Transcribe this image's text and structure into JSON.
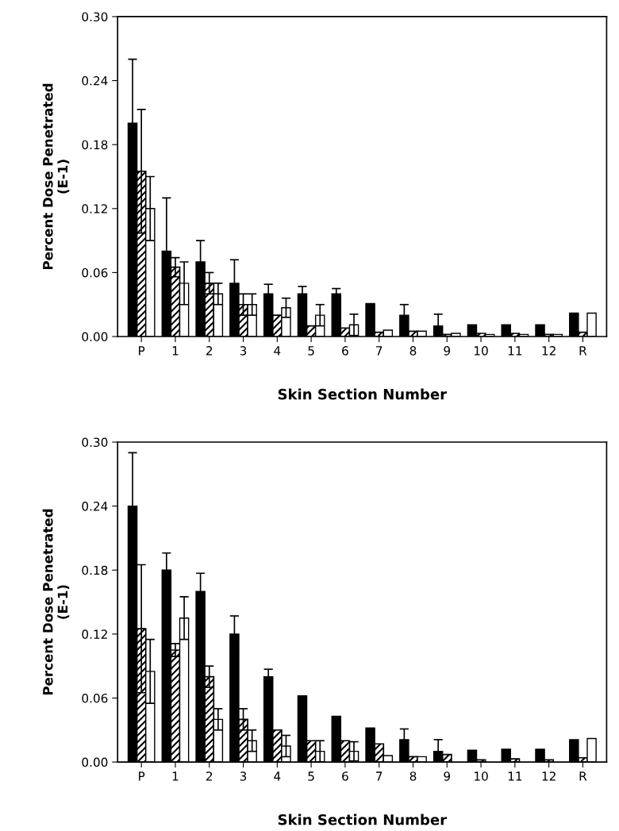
{
  "chart_data": [
    {
      "type": "bar",
      "xlabel": "Skin Section Number",
      "ylabel": "Percent Dose Penetrated\n(E-1)",
      "categories": [
        "P",
        "1",
        "2",
        "3",
        "4",
        "5",
        "6",
        "7",
        "8",
        "9",
        "10",
        "11",
        "12",
        "R"
      ],
      "ylim": [
        0,
        0.3
      ],
      "yticks": [
        {
          "value": 0,
          "label": "0.00"
        },
        {
          "value": 0.06,
          "label": "0.06"
        },
        {
          "value": 0.12,
          "label": "0.12"
        },
        {
          "value": 0.18,
          "label": "0.18"
        },
        {
          "value": 0.24,
          "label": "0.24"
        },
        {
          "value": 0.3,
          "label": "0.30"
        }
      ],
      "series": [
        {
          "color": "#000000",
          "values": [
            0.2,
            0.08,
            0.07,
            0.05,
            0.04,
            0.04,
            0.04,
            0.031,
            0.02,
            0.01,
            0.011,
            0.011,
            0.011,
            0.022
          ],
          "errors": [
            0.06,
            0.05,
            0.02,
            0.022,
            0.009,
            0.007,
            0.005,
            null,
            0.01,
            0.011,
            null,
            null,
            null,
            null
          ]
        },
        {
          "color": "#000000",
          "values": [
            0.155,
            0.065,
            0.05,
            0.03,
            0.02,
            0.01,
            0.008,
            0.004,
            0.005,
            0.002,
            0.003,
            0.003,
            0.002,
            0.004
          ],
          "errors": [
            0.058,
            0.009,
            0.01,
            0.01,
            null,
            null,
            null,
            null,
            null,
            null,
            null,
            null,
            null,
            null
          ]
        },
        {
          "color": "#ffffff",
          "values": [
            0.12,
            0.05,
            0.04,
            0.03,
            0.027,
            0.02,
            0.011,
            0.006,
            0.005,
            0.003,
            0.002,
            0.002,
            0.002,
            0.022
          ],
          "errors": [
            0.03,
            0.02,
            0.01,
            0.01,
            0.009,
            0.01,
            0.01,
            null,
            null,
            null,
            null,
            null,
            null,
            null
          ]
        }
      ]
    },
    {
      "type": "bar",
      "xlabel": "Skin Section Number",
      "ylabel": "Percent Dose Penetrated\n(E-1)",
      "categories": [
        "P",
        "1",
        "2",
        "3",
        "4",
        "5",
        "6",
        "7",
        "8",
        "9",
        "10",
        "11",
        "12",
        "R"
      ],
      "ylim": [
        0,
        0.3
      ],
      "yticks": [
        {
          "value": 0,
          "label": "0.00"
        },
        {
          "value": 0.06,
          "label": "0.06"
        },
        {
          "value": 0.12,
          "label": "0.12"
        },
        {
          "value": 0.18,
          "label": "0.18"
        },
        {
          "value": 0.24,
          "label": "0.24"
        },
        {
          "value": 0.3,
          "label": "0.30"
        }
      ],
      "series": [
        {
          "color": "#000000",
          "values": [
            0.24,
            0.18,
            0.16,
            0.12,
            0.08,
            0.062,
            0.043,
            0.032,
            0.021,
            0.01,
            0.011,
            0.012,
            0.012,
            0.021
          ],
          "errors": [
            0.05,
            0.016,
            0.017,
            0.017,
            0.007,
            null,
            null,
            null,
            0.01,
            0.011,
            null,
            null,
            null,
            null
          ]
        },
        {
          "color": "#000000",
          "values": [
            0.125,
            0.105,
            0.08,
            0.04,
            0.03,
            0.02,
            0.02,
            0.017,
            0.005,
            0.007,
            0.002,
            0.003,
            0.002,
            0.004
          ],
          "errors": [
            0.06,
            0.006,
            0.01,
            0.01,
            null,
            null,
            null,
            null,
            null,
            null,
            null,
            null,
            null,
            null
          ]
        },
        {
          "color": "#ffffff",
          "values": [
            0.085,
            0.135,
            0.04,
            0.02,
            0.015,
            0.01,
            0.01,
            0.006,
            0.005,
            null,
            null,
            null,
            null,
            0.022
          ],
          "errors": [
            0.03,
            0.02,
            0.01,
            0.01,
            0.01,
            0.01,
            0.009,
            null,
            null,
            null,
            null,
            null,
            null,
            null
          ]
        }
      ]
    }
  ]
}
